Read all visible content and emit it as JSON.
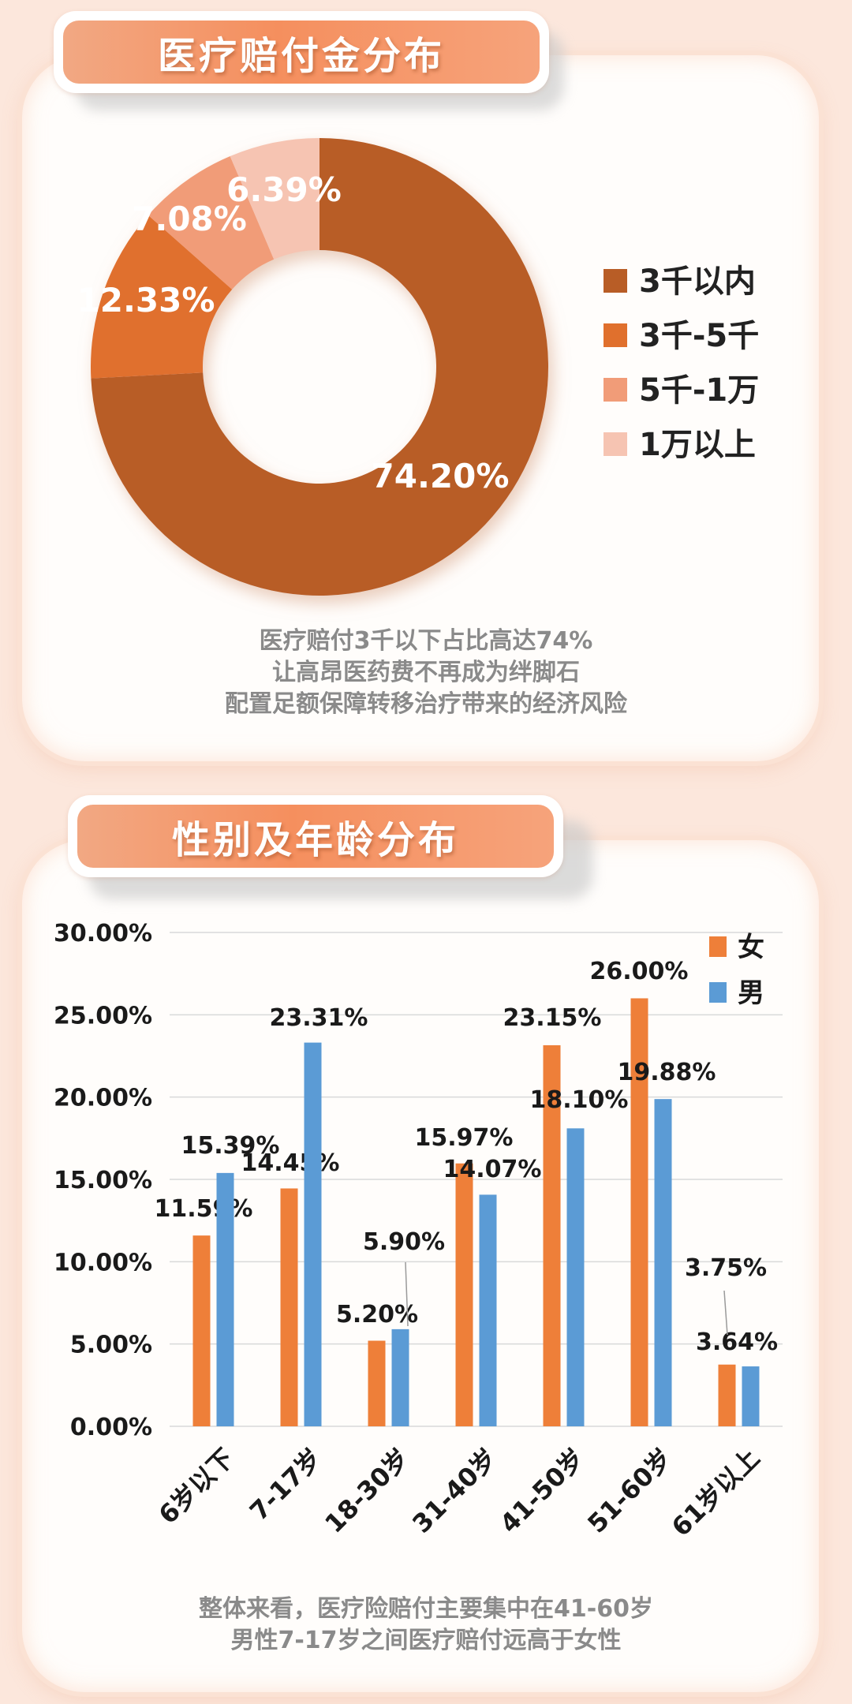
{
  "donut_section": {
    "title": "医疗赔付金分布",
    "caption": [
      "医疗赔付3千以下占比高达74%",
      "让高昂医药费不再成为绊脚石",
      "配置足额保障转移治疗带来的经济风险"
    ]
  },
  "bar_section": {
    "title": "性别及年龄分布",
    "caption": [
      "整体来看，医疗险赔付主要集中在41-60岁",
      "男性7-17岁之间医疗赔付远高于女性"
    ]
  },
  "chart_data": [
    {
      "type": "pie",
      "title": "",
      "categories": [
        "3千以内",
        "3千-5千",
        "5千-1万",
        "1万以上"
      ],
      "values": [
        74.2,
        12.33,
        7.08,
        6.39
      ],
      "labels": [
        "74.20%",
        "12.33%",
        "7.08%",
        "6.39%"
      ],
      "colors": [
        "#b85d26",
        "#e0702d",
        "#f19c78",
        "#f6c4b2"
      ],
      "legend": "right"
    },
    {
      "type": "bar",
      "title": "",
      "categories": [
        "6岁以下",
        "7-17岁",
        "18-30岁",
        "31-40岁",
        "41-50岁",
        "51-60岁",
        "61岁以上"
      ],
      "series": [
        {
          "name": "女",
          "values": [
            11.59,
            14.45,
            5.2,
            15.97,
            23.15,
            26.0,
            3.75
          ],
          "color": "#ee7f39"
        },
        {
          "name": "男",
          "values": [
            15.39,
            23.31,
            5.9,
            14.07,
            18.1,
            19.88,
            3.64
          ],
          "color": "#5b9bd5"
        }
      ],
      "labels": {
        "女": [
          "11.59%",
          "14.45%",
          "5.20%",
          "15.97%",
          "23.15%",
          "26.00%",
          "3.75%"
        ],
        "男": [
          "15.39%",
          "23.31%",
          "5.90%",
          "14.07%",
          "18.10%",
          "19.88%",
          "3.64%"
        ]
      },
      "yticks": [
        "0.00%",
        "5.00%",
        "10.00%",
        "15.00%",
        "20.00%",
        "25.00%",
        "30.00%"
      ],
      "ylim": [
        0,
        30
      ],
      "grid": true,
      "legend": "top-right"
    }
  ]
}
